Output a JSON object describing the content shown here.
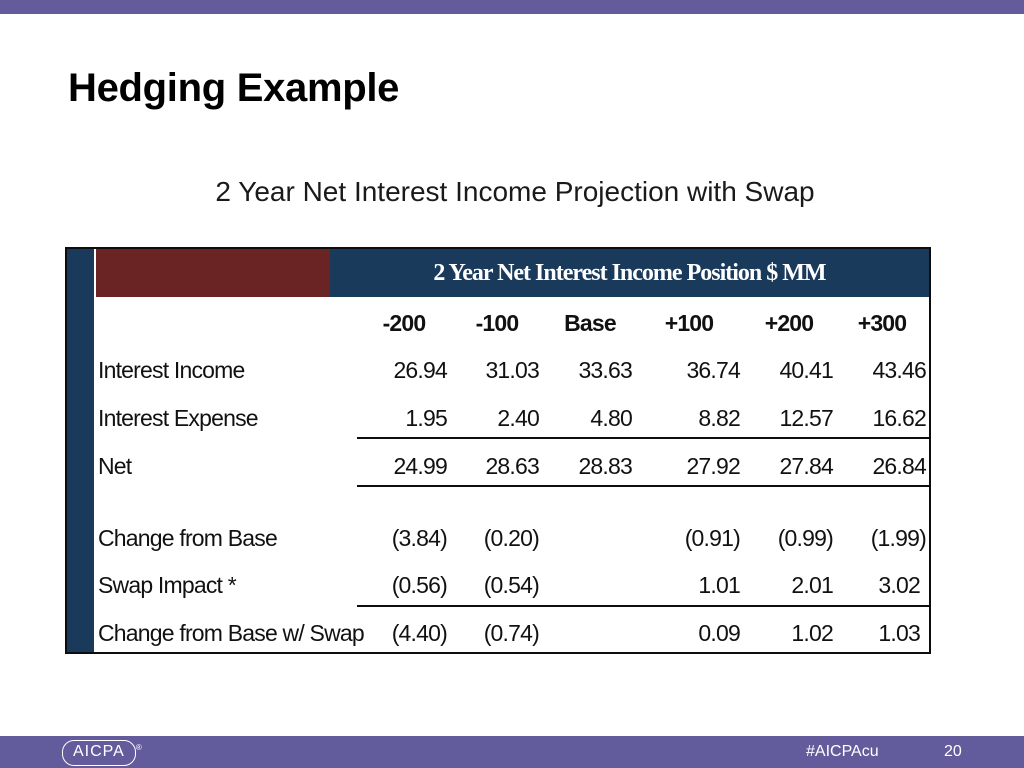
{
  "slide": {
    "title": "Hedging Example",
    "subtitle": "2 Year Net Interest Income Projection with Swap",
    "footer_hashtag": "#AICPAcu",
    "page_number": "20",
    "logo_text": "AICPA",
    "logo_mark": "®"
  },
  "table": {
    "header": "2 Year Net Interest Income Position $ MM",
    "columns": [
      "-200",
      "-100",
      "Base",
      "+100",
      "+200",
      "+300"
    ],
    "rows": [
      {
        "label": "Interest Income",
        "values": [
          "26.94",
          "31.03",
          "33.63",
          "36.74",
          "40.41",
          "43.46"
        ]
      },
      {
        "label": "Interest Expense",
        "values": [
          "1.95",
          "2.40",
          "4.80",
          "8.82",
          "12.57",
          "16.62"
        ]
      },
      {
        "label": "Net",
        "values": [
          "24.99",
          "28.63",
          "28.83",
          "27.92",
          "27.84",
          "26.84"
        ]
      },
      {
        "label": "Change from Base",
        "values": [
          "(3.84)",
          "(0.20)",
          "",
          "(0.91)",
          "(0.99)",
          "(1.99)"
        ]
      },
      {
        "label": "Swap Impact *",
        "values": [
          "(0.56)",
          "(0.54)",
          "",
          "1.01",
          "2.01",
          "3.02"
        ]
      },
      {
        "label": "Change from Base w/ Swap",
        "values": [
          "(4.40)",
          "(0.74)",
          "",
          "0.09",
          "1.02",
          "1.03"
        ]
      }
    ]
  },
  "colors": {
    "bar": "#635c9c",
    "table_header": "#1a3a5c",
    "accent_cell": "#6b2424"
  }
}
